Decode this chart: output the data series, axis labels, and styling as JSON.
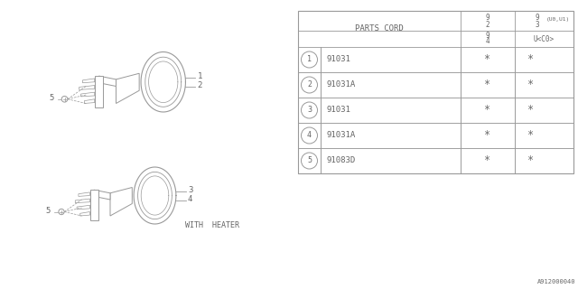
{
  "bg_color": "#ffffff",
  "line_color": "#999999",
  "text_color": "#666666",
  "table": {
    "header": "PARTS CORD",
    "col_header_top_left": "9\n2",
    "col_header_top_right1": "9\n3",
    "col_header_top_right2": "(U0,U1)",
    "col_header_bot_right1": "9\n4",
    "col_header_bot_right2": "U<C0>",
    "rows": [
      {
        "num": "1",
        "part": "91031",
        "c2": "*",
        "c3": "*"
      },
      {
        "num": "2",
        "part": "91031A",
        "c2": "*",
        "c3": "*"
      },
      {
        "num": "3",
        "part": "91031",
        "c2": "*",
        "c3": "*"
      },
      {
        "num": "4",
        "part": "91031A",
        "c2": "*",
        "c3": "*"
      },
      {
        "num": "5",
        "part": "91083D",
        "c2": "*",
        "c3": "*"
      }
    ]
  },
  "diagram": {
    "label1": "1",
    "label2": "2",
    "label3": "3",
    "label4": "4",
    "label5": "5",
    "with_heater_text": "WITH  HEATER"
  },
  "footer": "A912000040",
  "font_family": "monospace",
  "font_size": 6.5
}
